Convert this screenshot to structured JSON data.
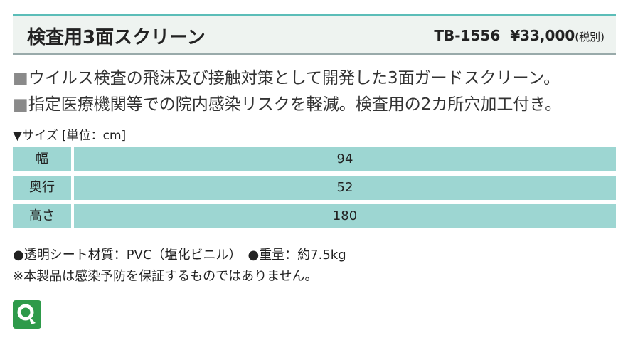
{
  "header": {
    "title": "検査用3面スクリーン",
    "model": "TB-1556",
    "price": "¥33,000",
    "tax": "(税別)"
  },
  "description": [
    {
      "bullet": "■",
      "text": "ウイルス検査の飛沫及び接触対策として開発した3面ガードスクリーン。"
    },
    {
      "bullet": "■",
      "text": "指定医療機関等での院内感染リスクを軽減。検査用の2カ所穴加工付き。"
    }
  ],
  "size_heading": "▼サイズ [単位：cm]",
  "table": {
    "rows": [
      [
        "幅",
        94
      ],
      [
        "奥行",
        52
      ],
      [
        "高さ",
        180
      ]
    ]
  },
  "notes": [
    "●透明シート材質：PVC（塩化ビニル）　●重量：約7.5kg",
    "※本製品は感染予防を保証するものではありません。"
  ]
}
